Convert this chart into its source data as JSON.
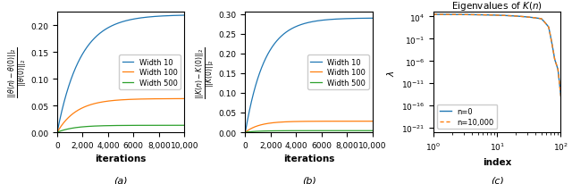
{
  "fig_width": 6.4,
  "fig_height": 2.07,
  "dpi": 100,
  "subplot_a": {
    "ylabel": "$\\frac{||\\theta(n) - \\theta(0)||_2}{||\\theta(0)||_2}$",
    "xlabel": "iterations",
    "ylim": [
      0,
      0.225
    ],
    "xlim": [
      0,
      10000
    ],
    "xticks": [
      0,
      2000,
      4000,
      6000,
      8000,
      10000
    ],
    "xticklabels": [
      "0",
      "2,000",
      "4,000",
      "6000",
      "8,000",
      "10,000"
    ],
    "yticks": [
      0.0,
      0.05,
      0.1,
      0.15,
      0.2
    ],
    "label_a": "(a)",
    "legend": [
      "Width 10",
      "Width 100",
      "Width 500"
    ],
    "colors": [
      "#1f77b4",
      "#ff7f0e",
      "#2ca02c"
    ],
    "finals": [
      0.22,
      0.063,
      0.013
    ],
    "rates": [
      0.00055,
      0.00065,
      0.00075
    ]
  },
  "subplot_b": {
    "ylabel": "$\\frac{||K(n) - K(0)||_2}{||K(0)||_2}$",
    "xlabel": "iterations",
    "ylim": [
      0,
      0.305
    ],
    "xlim": [
      0,
      10000
    ],
    "xticks": [
      0,
      2000,
      4000,
      6000,
      8000,
      10000
    ],
    "xticklabels": [
      "0",
      "2,000",
      "4,000",
      "6000",
      "8,000",
      "10,000"
    ],
    "yticks": [
      0.0,
      0.05,
      0.1,
      0.15,
      0.2,
      0.25,
      0.3
    ],
    "label_b": "(b)",
    "legend": [
      "Width 10",
      "Width 100",
      "Width 500"
    ],
    "colors": [
      "#1f77b4",
      "#ff7f0e",
      "#2ca02c"
    ],
    "finals": [
      0.29,
      0.028,
      0.004
    ],
    "rates": [
      0.00065,
      0.0009,
      0.001
    ]
  },
  "subplot_c": {
    "title": "Eigenvalues of $K(n)$",
    "xlabel": "index",
    "ylabel": "$\\lambda$",
    "label_c": "(c)",
    "legend": [
      "n=0",
      "n=10,000"
    ],
    "colors": [
      "#1f77b4",
      "#ff7f0e"
    ],
    "ytick_exps": [
      4,
      -1,
      -6,
      -11,
      -16,
      -21
    ]
  },
  "caption_fontsize": 8,
  "tick_fontsize": 6.5,
  "label_fontsize": 7.5,
  "legend_fontsize": 6.0,
  "title_fontsize": 7.5
}
